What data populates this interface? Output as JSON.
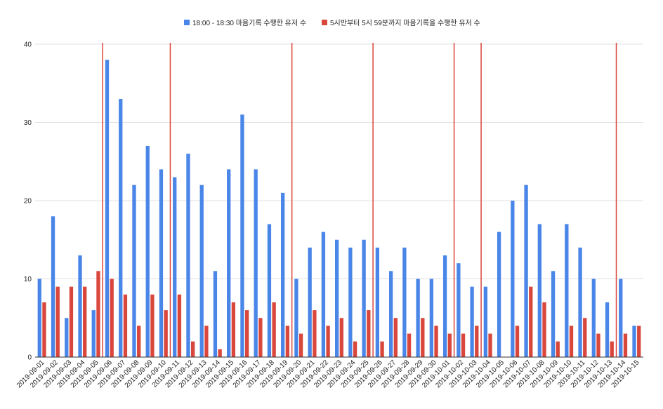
{
  "chart_data": {
    "type": "bar",
    "title": "",
    "xlabel": "",
    "ylabel": "",
    "ylim": [
      0,
      40
    ],
    "yticks": [
      0,
      10,
      20,
      30,
      40
    ],
    "grid": true,
    "legend_position": "top",
    "categories": [
      "2019-09-01",
      "2019-09-02",
      "2019-09-03",
      "2019-09-04",
      "2019-09-05",
      "2019-09-06",
      "2019-09-07",
      "2019-09-08",
      "2019-09-09",
      "2019-09-10",
      "2019-09-11",
      "2019-09-12",
      "2019-09-13",
      "2019-09-14",
      "2019-09-15",
      "2019-09-16",
      "2019-09-17",
      "2019-09-18",
      "2019-09-19",
      "2019-09-20",
      "2019-09-21",
      "2019-09-22",
      "2019-09-23",
      "2019-09-24",
      "2019-09-25",
      "2019-09-26",
      "2019-09-27",
      "2019-09-28",
      "2019-09-29",
      "2019-09-30",
      "2019-10-01",
      "2019-10-02",
      "2019-10-03",
      "2019-10-04",
      "2019-10-05",
      "2019-10-06",
      "2019-10-07",
      "2019-10-08",
      "2019-10-09",
      "2019-10-10",
      "2019-10-11",
      "2019-10-12",
      "2019-10-13",
      "2019-10-14",
      "2019-10-15"
    ],
    "series": [
      {
        "name": "18:00 - 18:30 마음기록 수행한 유저 수",
        "color": "#4a86e8",
        "values": [
          10,
          18,
          5,
          13,
          6,
          38,
          33,
          22,
          27,
          24,
          23,
          26,
          22,
          11,
          24,
          31,
          24,
          17,
          21,
          10,
          14,
          16,
          15,
          14,
          15,
          14,
          11,
          14,
          10,
          10,
          13,
          12,
          9,
          9,
          16,
          20,
          22,
          17,
          11,
          17,
          14,
          10,
          7,
          10,
          4
        ]
      },
      {
        "name": "5시반부터 5시 59분까지 마음기록을 수행한 유저 수",
        "color": "#d9463b",
        "values": [
          7,
          9,
          9,
          9,
          11,
          10,
          8,
          4,
          8,
          6,
          8,
          2,
          4,
          1,
          7,
          6,
          5,
          7,
          4,
          3,
          6,
          4,
          5,
          2,
          6,
          2,
          5,
          3,
          5,
          4,
          3,
          3,
          4,
          3,
          0,
          4,
          9,
          7,
          2,
          4,
          5,
          3,
          2,
          3,
          4
        ]
      }
    ],
    "vertical_lines": {
      "color": "#d9463b",
      "between_categories": [
        [
          "2019-09-05",
          "2019-09-06"
        ],
        [
          "2019-09-10",
          "2019-09-11"
        ],
        [
          "2019-09-19",
          "2019-09-20"
        ],
        [
          "2019-09-25",
          "2019-09-26"
        ],
        [
          "2019-10-01",
          "2019-10-02"
        ],
        [
          "2019-10-03",
          "2019-10-04"
        ],
        [
          "2019-10-13",
          "2019-10-14"
        ]
      ]
    },
    "colors": {
      "grid": "#e0e0e0",
      "axis": "#333333",
      "text": "#222222"
    }
  }
}
